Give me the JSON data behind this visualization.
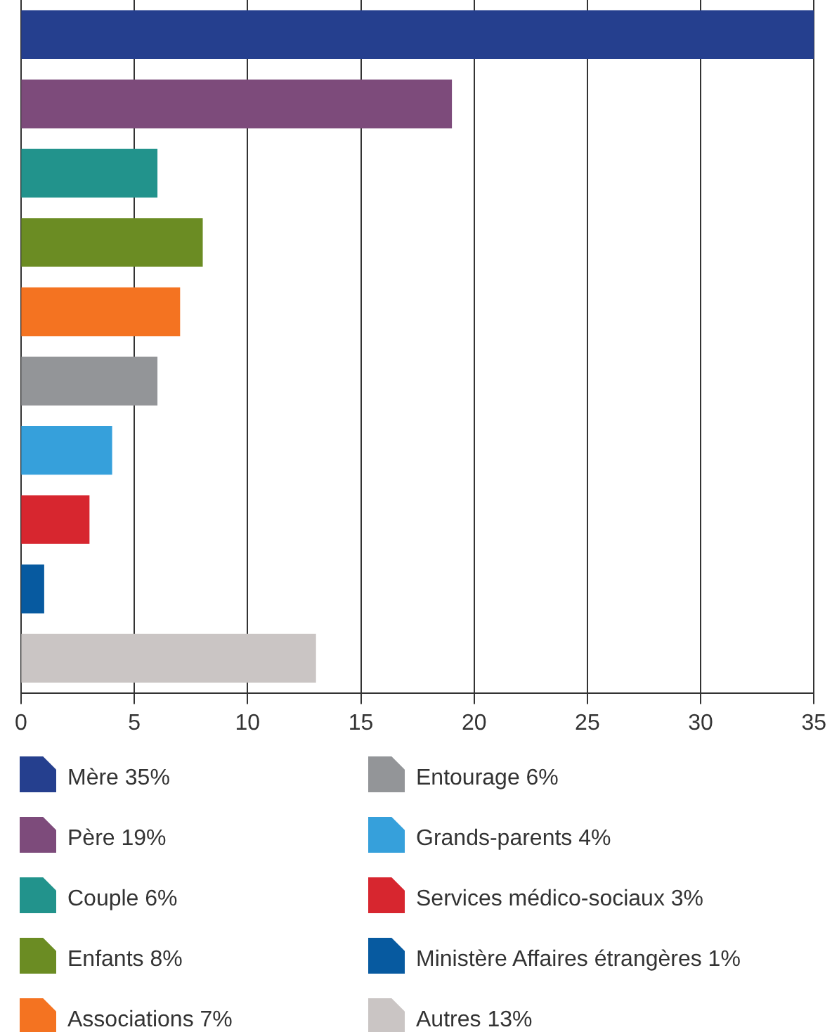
{
  "chart_data": {
    "type": "bar",
    "orientation": "horizontal",
    "categories": [
      null,
      null,
      null,
      null,
      null,
      null,
      null,
      null,
      null,
      null
    ],
    "series": [
      {
        "name": "Mère 35%",
        "color": "#253f8e",
        "values": [
          35,
          null,
          null,
          null,
          null,
          null,
          null,
          null,
          null,
          null
        ]
      },
      {
        "name": "Père 19%",
        "color": "#7d4b7b",
        "values": [
          null,
          19,
          null,
          null,
          null,
          null,
          null,
          null,
          null,
          null
        ]
      },
      {
        "name": "Couple 6%",
        "color": "#22938c",
        "values": [
          null,
          null,
          6,
          null,
          null,
          null,
          null,
          null,
          null,
          null
        ]
      },
      {
        "name": "Enfants 8%",
        "color": "#6b8c23",
        "values": [
          null,
          null,
          null,
          8,
          null,
          null,
          null,
          null,
          null,
          null
        ]
      },
      {
        "name": "Associations 7%",
        "color": "#f47321",
        "values": [
          null,
          null,
          null,
          null,
          7,
          null,
          null,
          null,
          null,
          null
        ]
      },
      {
        "name": "Entourage 6%",
        "color": "#939598",
        "values": [
          null,
          null,
          null,
          null,
          null,
          6,
          null,
          null,
          null,
          null
        ]
      },
      {
        "name": "Grands-parents 4%",
        "color": "#36a0db",
        "values": [
          null,
          null,
          null,
          null,
          null,
          null,
          4,
          null,
          null,
          null
        ]
      },
      {
        "name": "Services médico-sociaux 3%",
        "color": "#d7262f",
        "values": [
          null,
          null,
          null,
          null,
          null,
          null,
          null,
          3,
          null,
          null
        ]
      },
      {
        "name": "Ministère Affaires étrangères 1%",
        "color": "#075aa0",
        "values": [
          null,
          null,
          null,
          null,
          null,
          null,
          null,
          null,
          1,
          null
        ]
      },
      {
        "name": "Autres 13%",
        "color": "#cac5c4",
        "values": [
          null,
          null,
          null,
          null,
          null,
          null,
          null,
          null,
          null,
          13
        ]
      }
    ],
    "xlim": [
      0,
      35
    ],
    "xticks": [
      0,
      5,
      10,
      15,
      20,
      25,
      30,
      35
    ],
    "grid": "x",
    "legend": "bottom",
    "tick_labels": "x"
  }
}
